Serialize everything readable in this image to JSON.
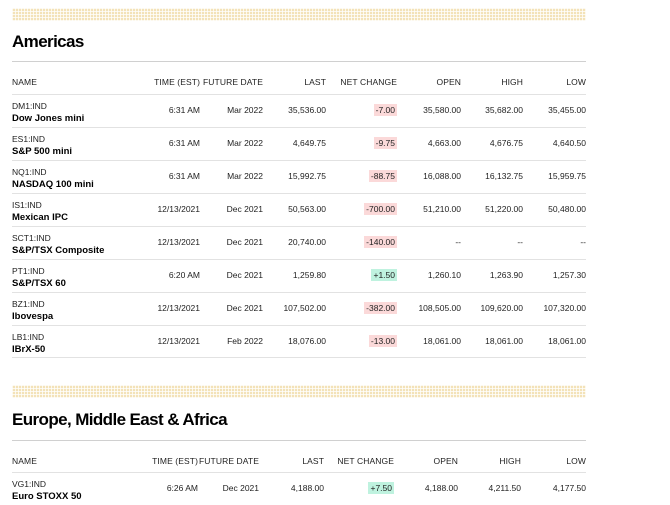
{
  "headers": {
    "name": "NAME",
    "time": "TIME (EST)",
    "future_date": "FUTURE DATE",
    "last": "LAST",
    "net_change": "NET CHANGE",
    "open": "OPEN",
    "high": "HIGH",
    "low": "LOW"
  },
  "americas": {
    "title": "Americas",
    "rows": [
      {
        "symbol": "DM1:IND",
        "name": "Dow Jones mini",
        "time": "6:31 AM",
        "future_date": "Mar 2022",
        "last": "35,536.00",
        "net_change": "-7.00",
        "direction": "negative",
        "open": "35,580.00",
        "high": "35,682.00",
        "low": "35,455.00"
      },
      {
        "symbol": "ES1:IND",
        "name": "S&P 500 mini",
        "time": "6:31 AM",
        "future_date": "Mar 2022",
        "last": "4,649.75",
        "net_change": "-9.75",
        "direction": "negative",
        "open": "4,663.00",
        "high": "4,676.75",
        "low": "4,640.50"
      },
      {
        "symbol": "NQ1:IND",
        "name": "NASDAQ 100 mini",
        "time": "6:31 AM",
        "future_date": "Mar 2022",
        "last": "15,992.75",
        "net_change": "-88.75",
        "direction": "negative",
        "open": "16,088.00",
        "high": "16,132.75",
        "low": "15,959.75"
      },
      {
        "symbol": "IS1:IND",
        "name": "Mexican IPC",
        "time": "12/13/2021",
        "future_date": "Dec 2021",
        "last": "50,563.00",
        "net_change": "-700.00",
        "direction": "negative",
        "open": "51,210.00",
        "high": "51,220.00",
        "low": "50,480.00"
      },
      {
        "symbol": "SCT1:IND",
        "name": "S&P/TSX Composite",
        "time": "12/13/2021",
        "future_date": "Dec 2021",
        "last": "20,740.00",
        "net_change": "-140.00",
        "direction": "negative",
        "open": "--",
        "high": "--",
        "low": "--"
      },
      {
        "symbol": "PT1:IND",
        "name": "S&P/TSX 60",
        "time": "6:20 AM",
        "future_date": "Dec 2021",
        "last": "1,259.80",
        "net_change": "+1.50",
        "direction": "positive",
        "open": "1,260.10",
        "high": "1,263.90",
        "low": "1,257.30"
      },
      {
        "symbol": "BZ1:IND",
        "name": "Ibovespa",
        "time": "12/13/2021",
        "future_date": "Dec 2021",
        "last": "107,502.00",
        "net_change": "-382.00",
        "direction": "negative",
        "open": "108,505.00",
        "high": "109,620.00",
        "low": "107,320.00"
      },
      {
        "symbol": "LB1:IND",
        "name": "IBrX-50",
        "time": "12/13/2021",
        "future_date": "Feb 2022",
        "last": "18,076.00",
        "net_change": "-13.00",
        "direction": "negative",
        "open": "18,061.00",
        "high": "18,061.00",
        "low": "18,061.00"
      }
    ]
  },
  "emea": {
    "title": "Europe, Middle East & Africa",
    "rows": [
      {
        "symbol": "VG1:IND",
        "name": "Euro STOXX 50",
        "time": "6:26 AM",
        "future_date": "Dec 2021",
        "last": "4,188.00",
        "net_change": "+7.50",
        "direction": "positive",
        "open": "4,188.00",
        "high": "4,211.50",
        "low": "4,177.50"
      }
    ]
  },
  "colors": {
    "negative_bg": "#fbd9d9",
    "positive_bg": "#bff2df",
    "band": "#f3e2b8"
  }
}
